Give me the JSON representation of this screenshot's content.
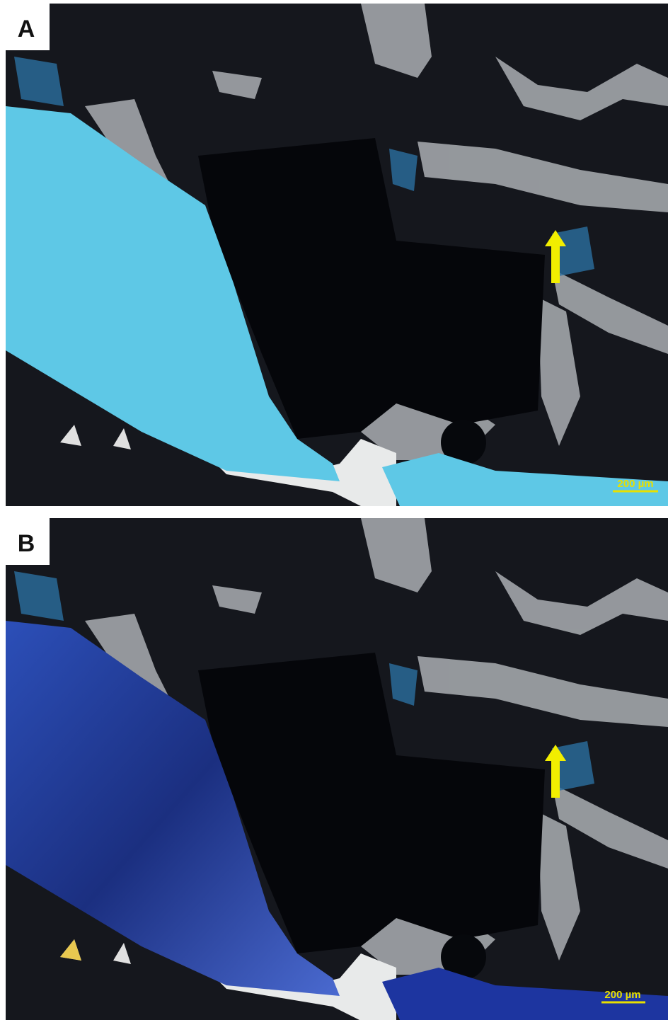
{
  "panels": [
    {
      "label": "A",
      "scale_bar": "200 µm"
    },
    {
      "label": "B",
      "scale_bar": "200 µm"
    }
  ]
}
